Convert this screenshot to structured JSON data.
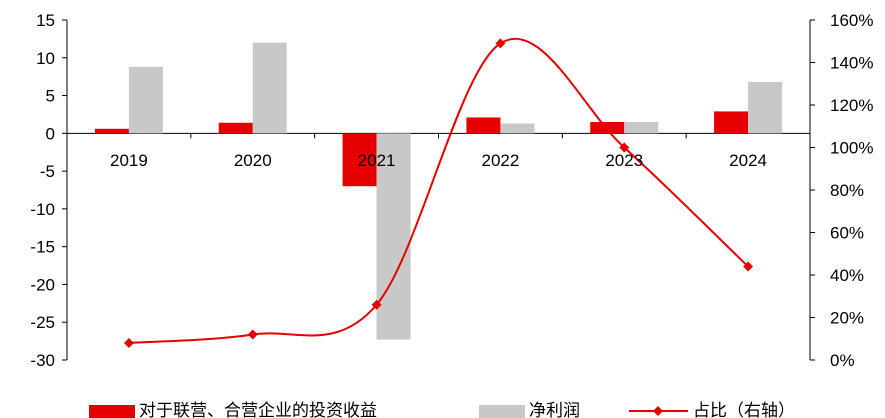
{
  "chart_data": {
    "type": "bar",
    "categories": [
      "2019",
      "2020",
      "2021",
      "2022",
      "2023",
      "2024"
    ],
    "series": [
      {
        "name": "对于联营、合营企业的投资收益",
        "type": "bar",
        "axis": "left",
        "color": "#e60000",
        "values": [
          0.6,
          1.4,
          -7.0,
          2.1,
          1.5,
          2.9
        ]
      },
      {
        "name": "净利润",
        "type": "bar",
        "axis": "left",
        "color": "#c8c8c8",
        "values": [
          8.8,
          12.0,
          -27.3,
          1.3,
          1.5,
          6.8
        ]
      },
      {
        "name": "占比（右轴）",
        "type": "line",
        "axis": "right",
        "color": "#e60000",
        "marker": "diamond",
        "values": [
          8,
          12,
          26,
          149,
          100,
          44
        ]
      }
    ],
    "y_left": {
      "min": -30,
      "max": 15,
      "step": 5,
      "tick_labels": [
        "15",
        "10",
        "5",
        "0",
        "-5",
        "-10",
        "-15",
        "-20",
        "-25",
        "-30"
      ]
    },
    "y_right": {
      "min": 0,
      "max": 160,
      "step": 20,
      "tick_labels": [
        "160%",
        "140%",
        "120%",
        "100%",
        "80%",
        "60%",
        "40%",
        "20%",
        "0%"
      ]
    },
    "grid": false,
    "legend_position": "bottom",
    "title": "",
    "xlabel": "",
    "ylabel": ""
  }
}
